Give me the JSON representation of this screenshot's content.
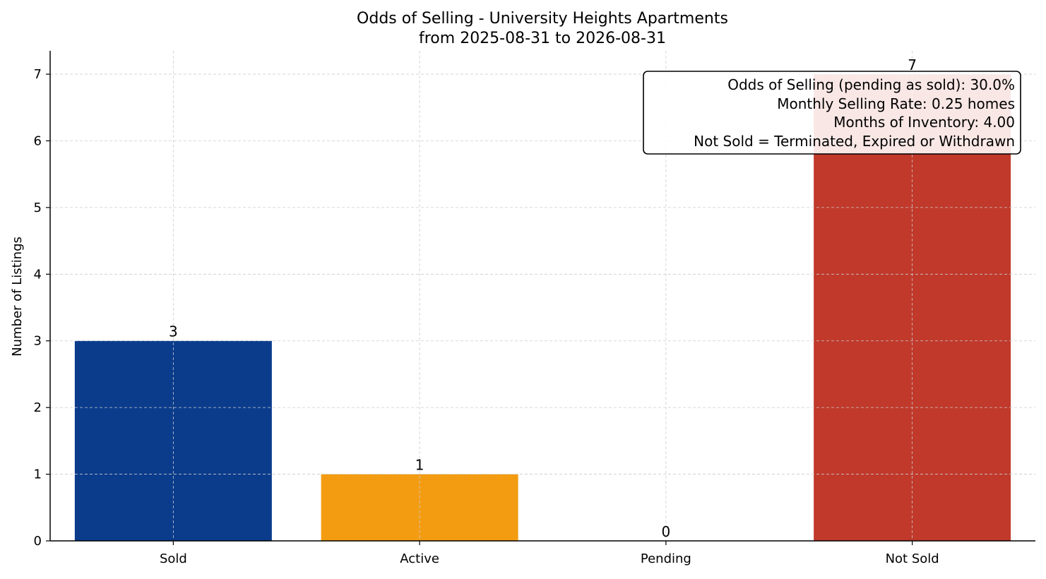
{
  "chart_data": {
    "type": "bar",
    "title": "Odds of Selling - University Heights Apartments",
    "subtitle": "from 2025-08-31 to 2026-08-31",
    "xlabel": "",
    "ylabel": "Number of Listings",
    "categories": [
      "Sold",
      "Active",
      "Pending",
      "Not Sold"
    ],
    "values": [
      3,
      1,
      0,
      7
    ],
    "colors": [
      "#0b3c8c",
      "#f39c12",
      "#7f8c8d",
      "#c0392b"
    ],
    "ylim": [
      0,
      7.35
    ],
    "yticks": [
      0,
      1,
      2,
      3,
      4,
      5,
      6,
      7
    ],
    "grid": true,
    "annotation_placement": "top-right",
    "annotation_lines": [
      "Odds of Selling (pending as sold): 30.0%",
      "Monthly Selling Rate: 0.25 homes",
      "Months of Inventory: 4.00",
      "Not Sold = Terminated, Expired or Withdrawn"
    ]
  }
}
